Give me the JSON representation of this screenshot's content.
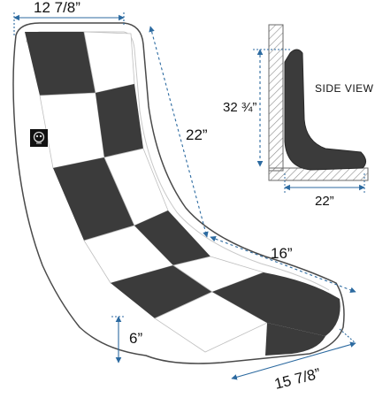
{
  "dimensions": {
    "top_width": "12 7/8”",
    "back_length": "22”",
    "seat_depth": "16”",
    "base_height": "6”",
    "bottom_width": "15 7/8”"
  },
  "side_view": {
    "label": "SIDE VIEW",
    "height": "32 ¾”",
    "depth": "22”"
  },
  "colors": {
    "dark_panel": "#3b3b3b",
    "white_panel": "#ffffff",
    "outline": "#4a4a4a",
    "dimension_line": "#2c6aa0",
    "hatch": "#8a8a8a"
  },
  "icons": {
    "logo": "skull-logo-icon"
  }
}
